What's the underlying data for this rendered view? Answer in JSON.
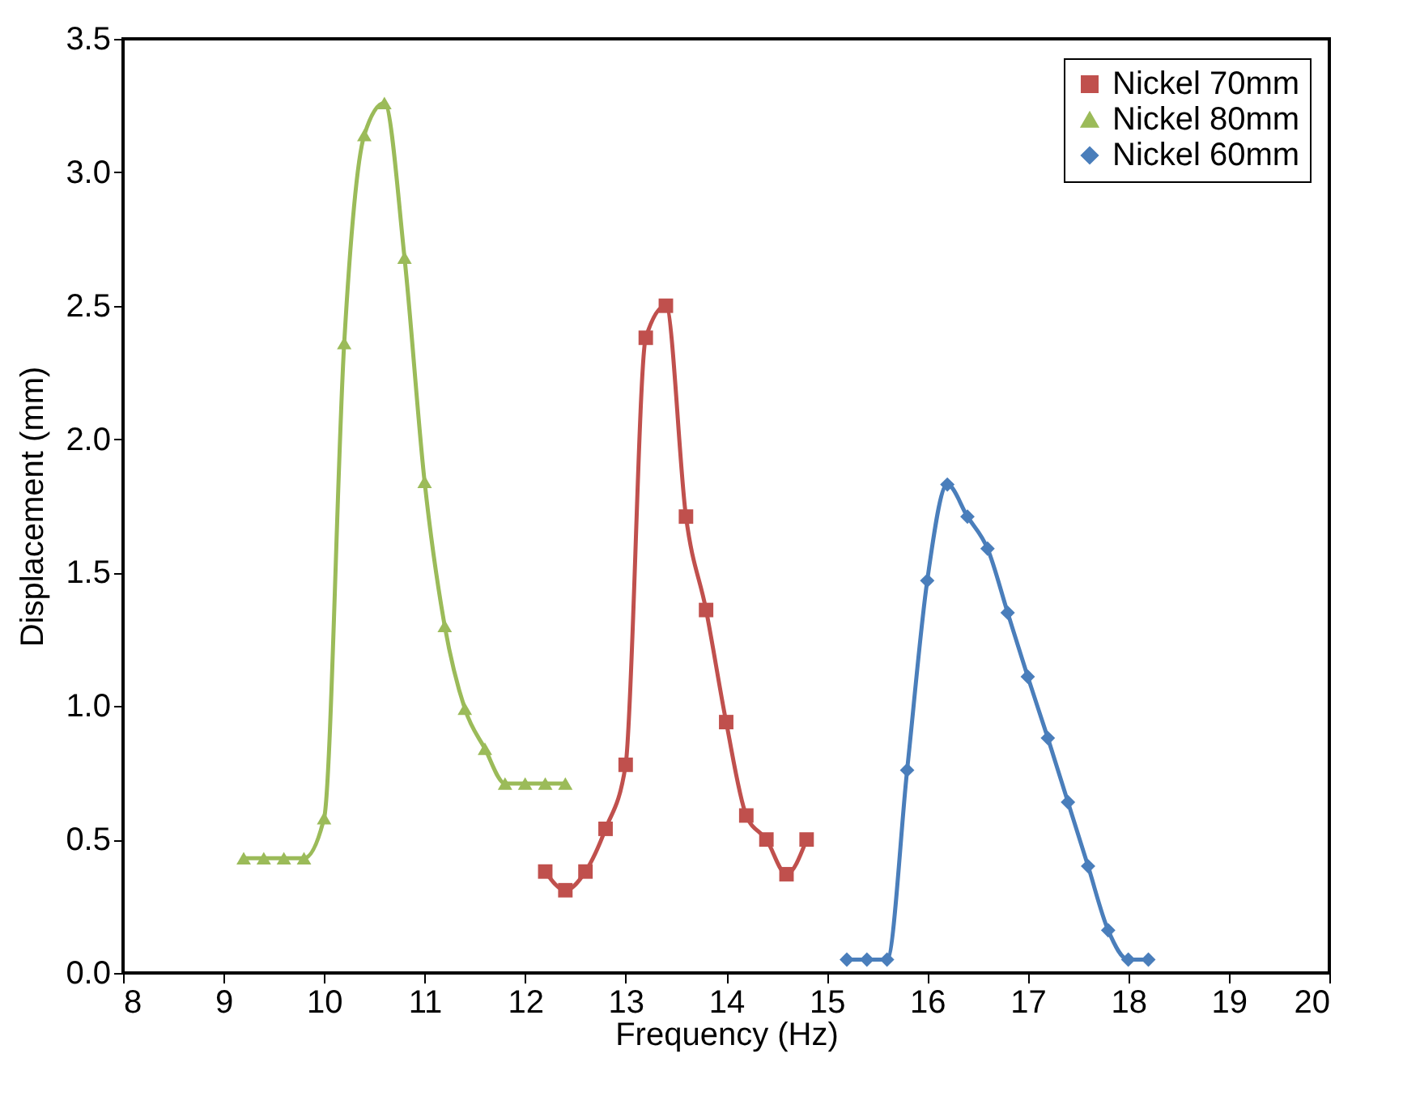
{
  "chart_data": {
    "type": "line",
    "xlabel": "Frequency (Hz)",
    "ylabel": "Displacement (mm)",
    "xlim": [
      8,
      20
    ],
    "xticks": [
      8,
      9,
      10,
      11,
      12,
      13,
      14,
      15,
      16,
      17,
      18,
      19,
      20
    ],
    "ylim": [
      0,
      3.5
    ],
    "yticks": [
      {
        "value": 0,
        "label": "0.0"
      },
      0.5,
      {
        "value": 1,
        "label": "1.0"
      },
      1.5,
      {
        "value": 2,
        "label": "2.0"
      },
      2.5,
      {
        "value": 3,
        "label": "3.0"
      },
      3.5
    ],
    "grid": false,
    "legend": "top right",
    "line_style": "solid",
    "series": [
      {
        "name": "Nickel 70mm",
        "color": "#c0504d",
        "marker": "square",
        "x": [
          12.2,
          12.4,
          12.6,
          12.8,
          13.0,
          13.2,
          13.4,
          13.6,
          13.8,
          14.0,
          14.2,
          14.4,
          14.6,
          14.8
        ],
        "values": [
          0.38,
          0.31,
          0.38,
          0.54,
          0.78,
          2.38,
          2.5,
          1.71,
          1.36,
          0.94,
          0.59,
          0.5,
          0.37,
          0.5
        ]
      },
      {
        "name": "Nickel 80mm",
        "color": "#9bbb59",
        "marker": "triangle",
        "x": [
          9.2,
          9.4,
          9.6,
          9.8,
          10.0,
          10.2,
          10.4,
          10.6,
          10.8,
          11.0,
          11.2,
          11.4,
          11.6,
          11.8,
          12.0,
          12.2,
          12.4
        ],
        "values": [
          0.43,
          0.43,
          0.43,
          0.43,
          0.58,
          2.36,
          3.14,
          3.26,
          2.68,
          1.84,
          1.3,
          0.99,
          0.84,
          0.71,
          0.71,
          0.71,
          0.71
        ]
      },
      {
        "name": "Nickel 60mm",
        "color": "#4a7ebb",
        "marker": "diamond",
        "x": [
          15.2,
          15.4,
          15.6,
          15.8,
          16.0,
          16.2,
          16.4,
          16.6,
          16.8,
          17.0,
          17.2,
          17.4,
          17.6,
          17.8,
          18.0,
          18.2
        ],
        "values": [
          0.05,
          0.05,
          0.05,
          0.76,
          1.47,
          1.83,
          1.71,
          1.59,
          1.35,
          1.11,
          0.88,
          0.64,
          0.4,
          0.16,
          0.05,
          0.05
        ]
      }
    ]
  }
}
